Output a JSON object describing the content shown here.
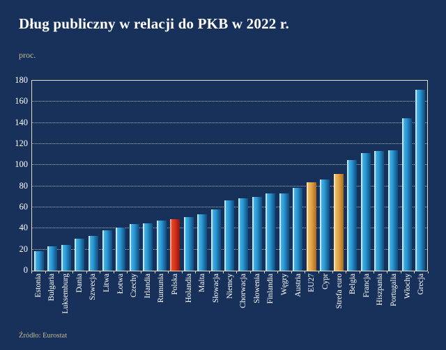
{
  "page": {
    "title": "Dług publiczny w relacji do PKB w 2022 r.",
    "unit_label": "proc.",
    "source": "Źródło: Eurostat"
  },
  "colors": {
    "background": "#17315a",
    "frame": "#e7ddbd",
    "bar_default": "#2d9ad3",
    "bar_poland_highlight": "#d8361f",
    "bar_aggregate_highlight": "#e2a94e",
    "muted_text": "#c9ba93",
    "label_text": "#ffffff"
  },
  "chart_data": {
    "type": "bar",
    "title": "Dług publiczny w relacji do PKB w 2022 r.",
    "ylabel": "proc.",
    "xlabel": "",
    "source": "Źródło: Eurostat",
    "ylim": [
      0,
      180
    ],
    "ytick_step": 20,
    "grid": "horizontal-dotted",
    "legend": "none",
    "categories": [
      "Estonia",
      "Bułgaria",
      "Luksemburg",
      "Dania",
      "Szwecja",
      "Litwa",
      "Łotwa",
      "Czechy",
      "Irlandia",
      "Rumunia",
      "Polska",
      "Holandia",
      "Malta",
      "Słowacja",
      "Niemcy",
      "Chorwacja",
      "Słowenia",
      "Finlandia",
      "Węgry",
      "Austria",
      "EU27",
      "Cypr",
      "Strefa euro",
      "Belgia",
      "Francja",
      "Hiszpania",
      "Portugalia",
      "Włochy",
      "Grecja"
    ],
    "values": [
      18.4,
      22.9,
      24.6,
      30.1,
      33.0,
      38.4,
      40.8,
      44.1,
      44.7,
      47.3,
      49.1,
      51.0,
      53.4,
      57.8,
      66.3,
      68.4,
      69.9,
      73.0,
      73.3,
      78.4,
      84.0,
      86.5,
      91.6,
      105.1,
      111.6,
      113.2,
      113.9,
      144.4,
      171.3
    ],
    "bar_roles": [
      "default",
      "default",
      "default",
      "default",
      "default",
      "default",
      "default",
      "default",
      "default",
      "default",
      "poland",
      "default",
      "default",
      "default",
      "default",
      "default",
      "default",
      "default",
      "default",
      "default",
      "aggregate",
      "default",
      "aggregate",
      "default",
      "default",
      "default",
      "default",
      "default",
      "default"
    ],
    "highlighted": {
      "poland": "Polska",
      "aggregates": [
        "EU27",
        "Strefa euro"
      ]
    }
  }
}
